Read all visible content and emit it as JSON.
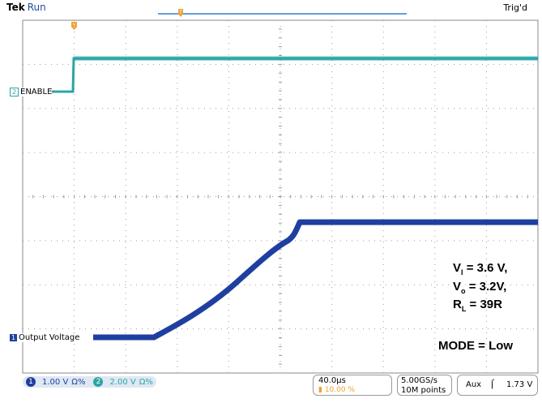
{
  "header": {
    "brand": "Tek",
    "run_state": "Run",
    "trigger_status": "Trig'd"
  },
  "channels": {
    "ch2": {
      "label": "ENABLE",
      "number": "2",
      "color": "#2aa6a6"
    },
    "ch1": {
      "label": "Output Voltage",
      "number": "1",
      "color": "#1f3fa0"
    }
  },
  "annotations": {
    "vi": {
      "name": "V",
      "sub": "I",
      "value": "= 3.6 V,"
    },
    "vo": {
      "name": "V",
      "sub": "o",
      "value": "= 3.2V,"
    },
    "rl": {
      "name": "R",
      "sub": "L",
      "value": "= 39R"
    },
    "mode": "MODE = Low"
  },
  "status_bar": {
    "ch1_scale": "1.00 V",
    "ch1_coupling": "Ω%",
    "ch2_scale": "2.00 V",
    "ch2_coupling": "Ω%",
    "timebase": "40.0µs",
    "trigger_position": "10.00 %",
    "sample_rate": "5.00GS/s",
    "record_length": "10M points",
    "trigger_source": "Aux",
    "trigger_slope": "⌠",
    "trigger_level": "1.73 V"
  },
  "colors": {
    "ch1": "#1f3fa0",
    "ch2": "#2aa6a6",
    "grid": "#9a9a9a",
    "trigger_marker": "#f0a030"
  }
}
